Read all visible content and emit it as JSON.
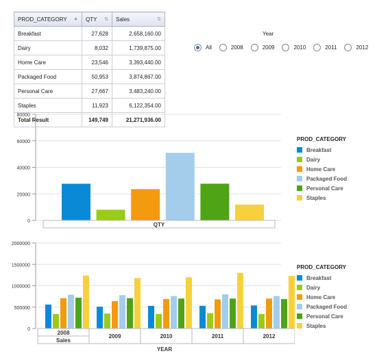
{
  "table": {
    "headers": [
      "PROD_CATEGORY",
      "QTY",
      "Sales"
    ],
    "rows": [
      [
        "Breakfast",
        "27,628",
        "2,658,160.00"
      ],
      [
        "Dairy",
        "8,032",
        "1,739,875.00"
      ],
      [
        "Home Care",
        "23,546",
        "3,393,440.00"
      ],
      [
        "Packaged Food",
        "50,953",
        "3,874,867.00"
      ],
      [
        "Personal Care",
        "27,667",
        "3,483,240.00"
      ],
      [
        "Staples",
        "11,923",
        "6,122,354.00"
      ]
    ],
    "total": [
      "Total Result",
      "149,749",
      "21,271,936.00"
    ]
  },
  "year_filter": {
    "title": "Year",
    "options": [
      "All",
      "2008",
      "2009",
      "2010",
      "2011",
      "2012"
    ],
    "selected": "All"
  },
  "colors": {
    "Breakfast": "#0a8ad6",
    "Dairy": "#9acb16",
    "Home Care": "#f39a0e",
    "Packaged Food": "#a3cdea",
    "Personal Care": "#4fa317",
    "Staples": "#f6d13d"
  },
  "chart_data": [
    {
      "type": "bar",
      "xlabel": "QTY",
      "legend_title": "PROD_CATEGORY",
      "categories": [
        "Breakfast",
        "Dairy",
        "Home Care",
        "Packaged Food",
        "Personal Care",
        "Staples"
      ],
      "values": [
        27628,
        8032,
        23546,
        50953,
        27667,
        11923
      ],
      "ylim": [
        0,
        80000
      ],
      "yticks": [
        "0",
        "20000",
        "40000",
        "60000",
        "80000"
      ],
      "legend_position": "right",
      "grid": true
    },
    {
      "type": "bar",
      "xlabel": "YEAR",
      "measure_label": "Sales",
      "legend_title": "PROD_CATEGORY",
      "groups": [
        "2008",
        "2009",
        "2010",
        "2011",
        "2012"
      ],
      "series": [
        {
          "name": "Breakfast",
          "values": [
            560000,
            510000,
            530000,
            530000,
            540000
          ]
        },
        {
          "name": "Dairy",
          "values": [
            340000,
            350000,
            340000,
            360000,
            340000
          ]
        },
        {
          "name": "Home Care",
          "values": [
            710000,
            640000,
            690000,
            680000,
            700000
          ]
        },
        {
          "name": "Packaged Food",
          "values": [
            790000,
            780000,
            760000,
            800000,
            760000
          ]
        },
        {
          "name": "Personal Care",
          "values": [
            720000,
            710000,
            700000,
            700000,
            690000
          ]
        },
        {
          "name": "Staples",
          "values": [
            1240000,
            1180000,
            1200000,
            1300000,
            1230000
          ]
        }
      ],
      "ylim": [
        0,
        2000000
      ],
      "yticks": [
        "0",
        "500000",
        "1000000",
        "1500000",
        "2000000"
      ],
      "legend_position": "right",
      "grid": true
    }
  ]
}
